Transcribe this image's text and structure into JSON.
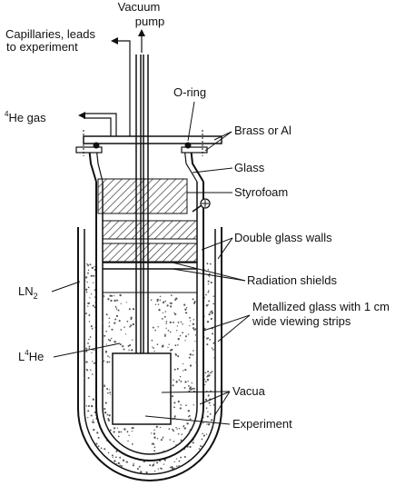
{
  "labels": {
    "vacuum_pump_1": "Vacuum",
    "vacuum_pump_2": "pump",
    "capillaries_1": "Capillaries, leads",
    "capillaries_2": "to experiment",
    "he_gas_sup": "4",
    "he_gas": "He gas",
    "o_ring": "O-ring",
    "brass": "Brass or Al",
    "glass": "Glass",
    "styrofoam": "Styrofoam",
    "double_glass": "Double glass walls",
    "radiation": "Radiation shields",
    "metallized_1": "Metallized glass with 1 cm",
    "metallized_2": "wide viewing strips",
    "ln2_main": "LN",
    "ln2_sub": "2",
    "l4he_L": "L",
    "l4he_sup": "4",
    "l4he_He": "He",
    "vacua": "Vacua",
    "experiment": "Experiment"
  },
  "colors": {
    "line": "#111111",
    "hatch": "#333333",
    "speckle": "#555555",
    "background": "#ffffff"
  }
}
